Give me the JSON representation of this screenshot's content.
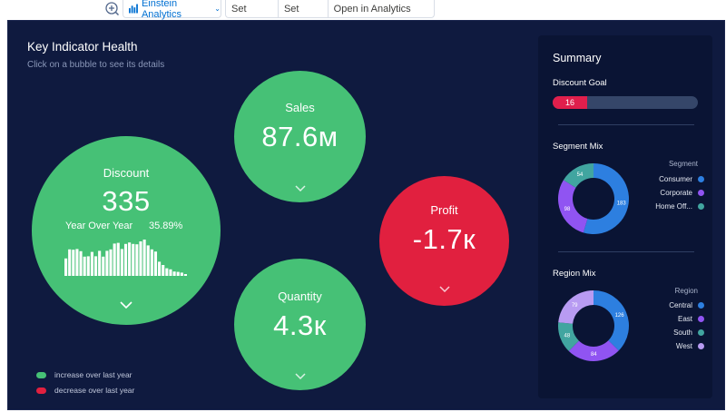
{
  "toolbar": {
    "einstein_label": "Einstein Analytics",
    "set_height": "Set Height",
    "set_width": "Set Width",
    "open_studio": "Open in Analytics Studio"
  },
  "dashboard": {
    "title": "Key Indicator Health",
    "subtitle": "Click on a bubble to see its details"
  },
  "bubbles": {
    "discount": {
      "label": "Discount",
      "value": "335",
      "yoy_label": "Year Over Year",
      "yoy_value": "35.89%"
    },
    "sales": {
      "label": "Sales",
      "value": "87.6м"
    },
    "profit": {
      "label": "Profit",
      "value": "-1.7к"
    },
    "quantity": {
      "label": "Quantity",
      "value": "4.3к"
    }
  },
  "discount_histogram": [
    0.48,
    0.73,
    0.72,
    0.74,
    0.68,
    0.53,
    0.54,
    0.66,
    0.54,
    0.69,
    0.53,
    0.69,
    0.73,
    0.89,
    0.91,
    0.74,
    0.88,
    0.92,
    0.88,
    0.87,
    0.95,
    1.0,
    0.84,
    0.73,
    0.67,
    0.39,
    0.3,
    0.21,
    0.18,
    0.12,
    0.11,
    0.09,
    0.05
  ],
  "legend": {
    "increase": "increase over last year",
    "decrease": "decrease over last year"
  },
  "colors": {
    "increase": "#46c176",
    "decrease": "#e1203f",
    "background": "#0f1a3f"
  },
  "summary": {
    "title": "Summary",
    "discount_goal": {
      "label": "Discount Goal",
      "value": "16",
      "fill_fraction": 0.24
    },
    "segment_mix": {
      "title": "Segment Mix",
      "legend_title": "Segment",
      "items": [
        {
          "name": "Consumer",
          "value": 183,
          "label": "183",
          "color": "#2d7fe0"
        },
        {
          "name": "Corporate",
          "value": 98,
          "label": "98",
          "color": "#9054f2"
        },
        {
          "name": "Home Off...",
          "value": 54,
          "label": "54",
          "color": "#41a5a0"
        }
      ]
    },
    "region_mix": {
      "title": "Region Mix",
      "legend_title": "Region",
      "items": [
        {
          "name": "Central",
          "value": 126,
          "label": "126",
          "color": "#2d7fe0"
        },
        {
          "name": "East",
          "value": 84,
          "label": "84",
          "color": "#9054f2"
        },
        {
          "name": "South",
          "value": 48,
          "label": "48",
          "color": "#41a5a0"
        },
        {
          "name": "West",
          "value": 79,
          "label": "79",
          "color": "#b89bf2"
        }
      ]
    }
  }
}
